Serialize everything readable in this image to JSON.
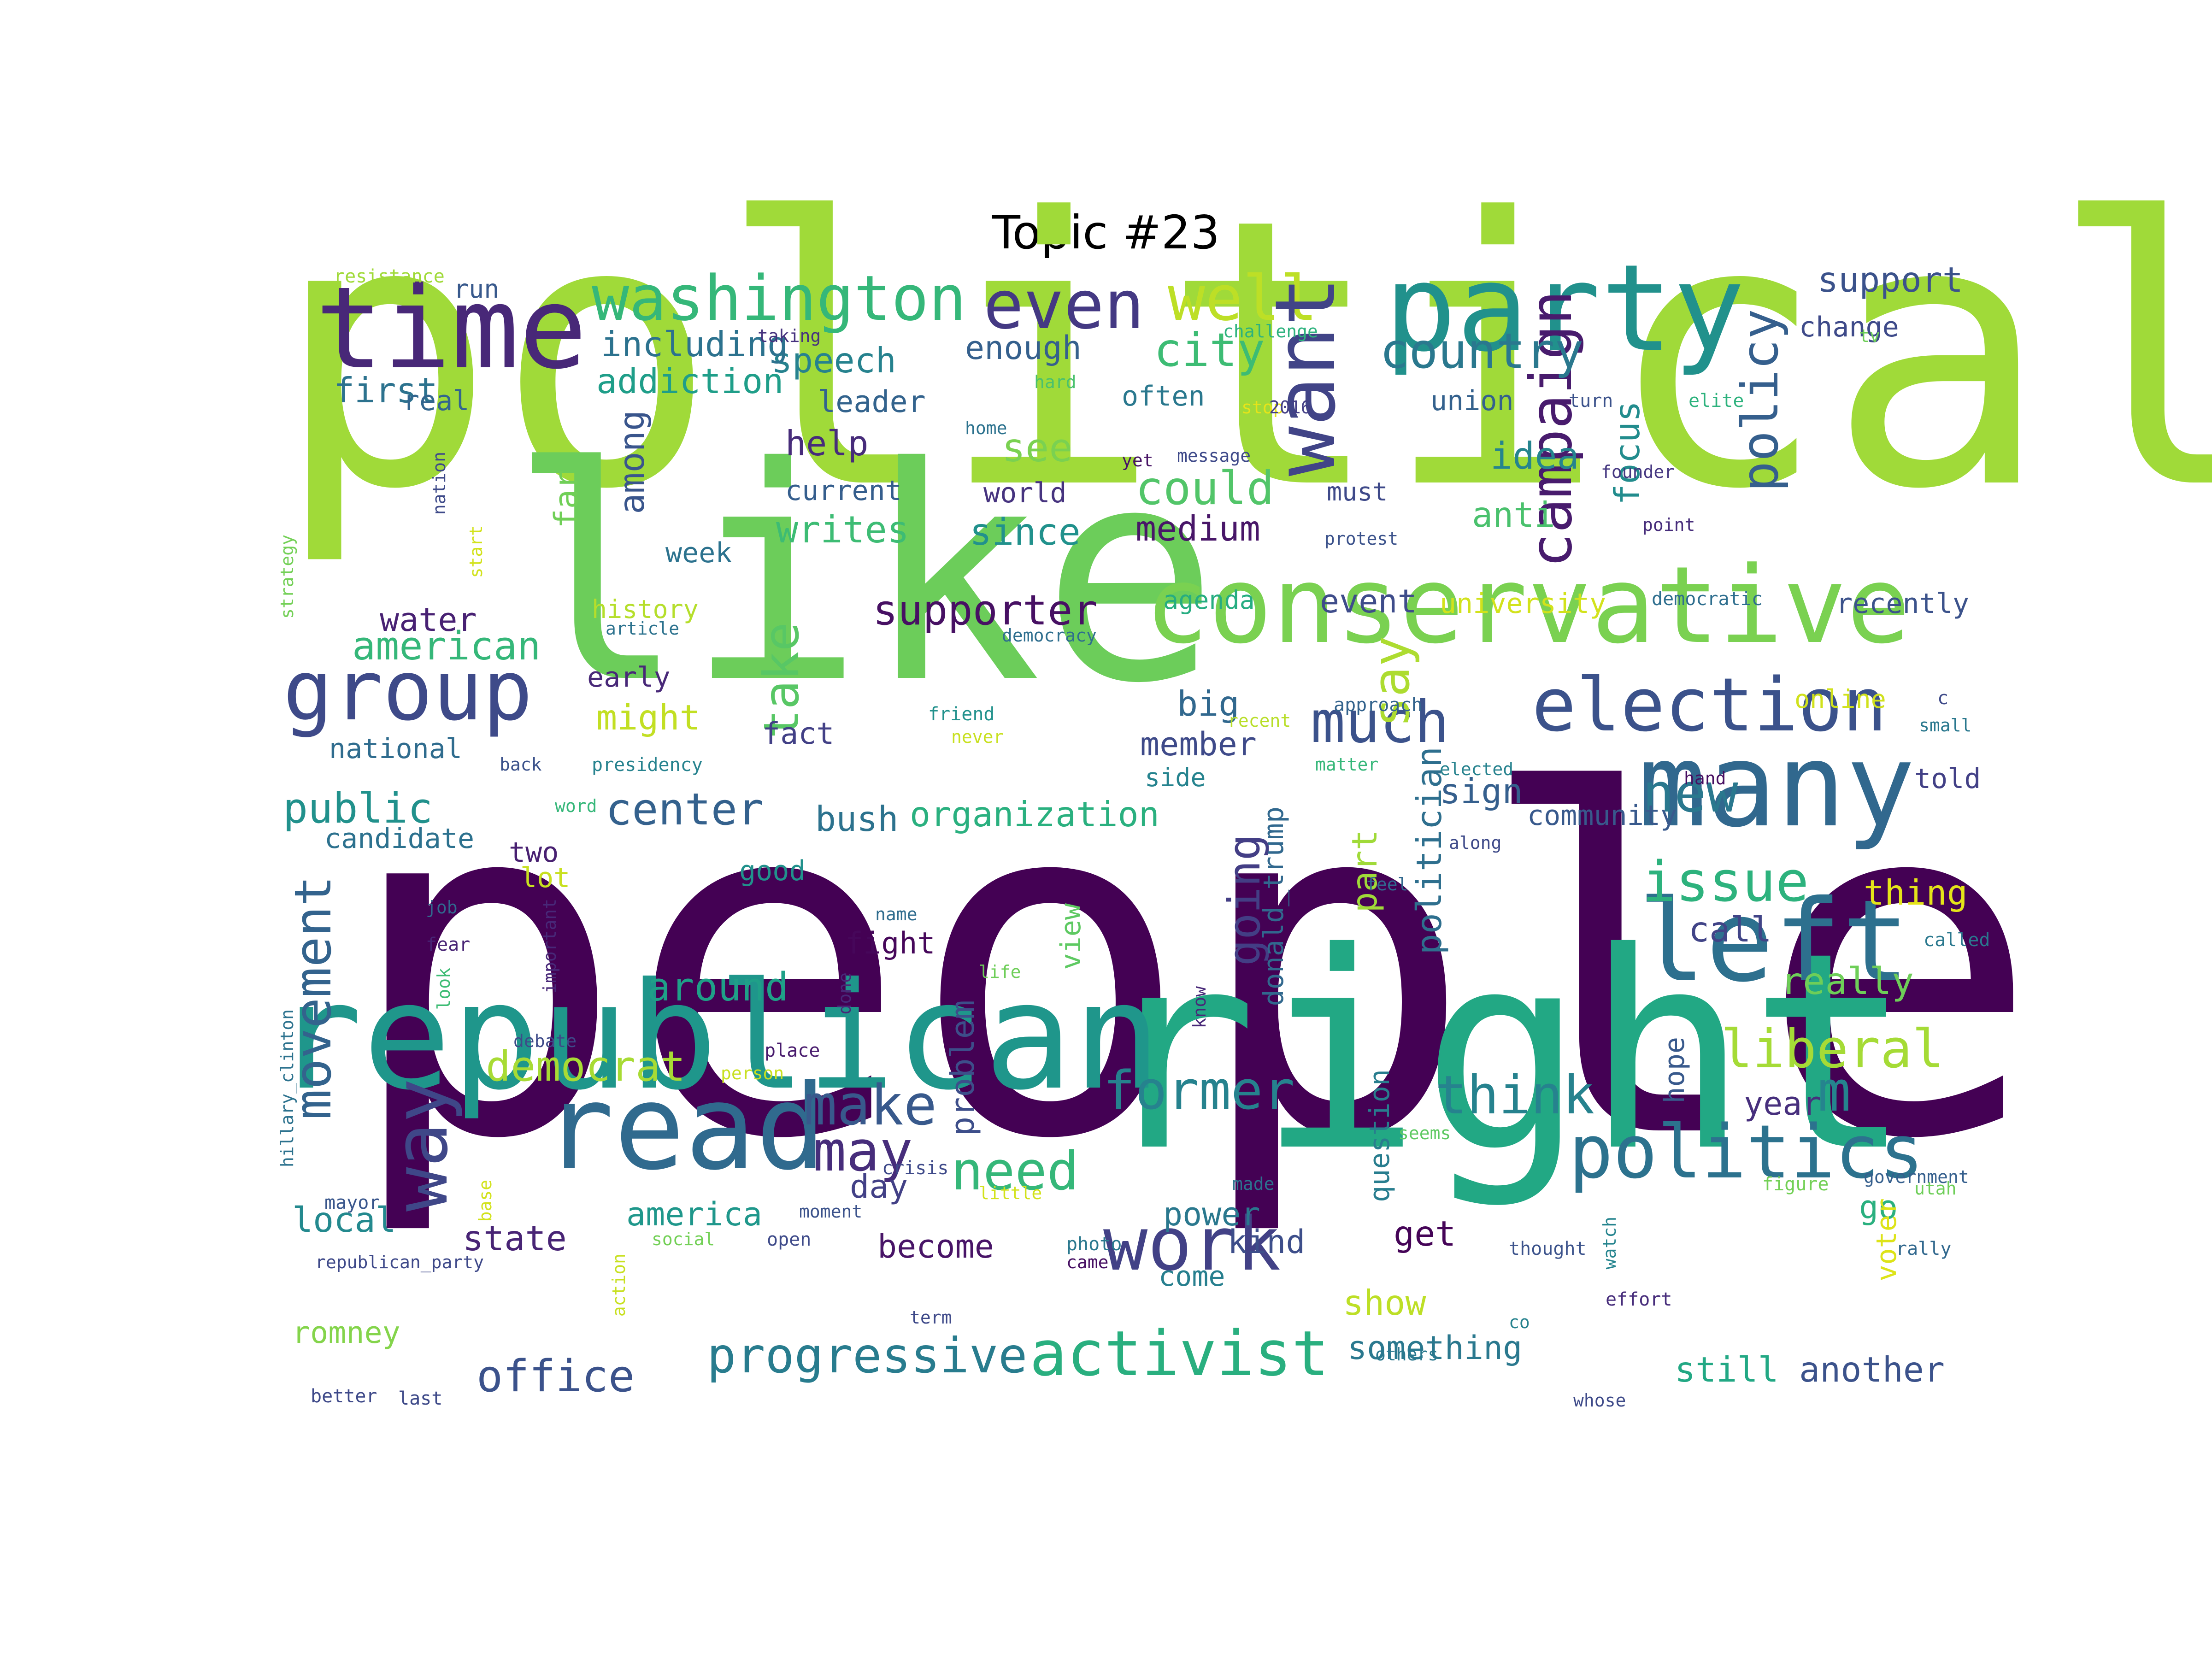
{
  "title": "Topic #23",
  "words": [
    {
      "text": "people",
      "color": "#440154"
    },
    {
      "text": "political",
      "color": "#a0da39"
    },
    {
      "text": "like",
      "color": "#6ccd5a"
    },
    {
      "text": "right",
      "color": "#22a884"
    },
    {
      "text": "republican",
      "color": "#1f968b"
    },
    {
      "text": "party",
      "color": "#21918c"
    },
    {
      "text": "time",
      "color": "#482878"
    },
    {
      "text": "conservative",
      "color": "#7ad151"
    },
    {
      "text": "many",
      "color": "#31688e"
    },
    {
      "text": "read",
      "color": "#306a8e"
    },
    {
      "text": "left",
      "color": "#2d708e"
    },
    {
      "text": "election",
      "color": "#3b528b"
    },
    {
      "text": "politics",
      "color": "#2c728e"
    },
    {
      "text": "group",
      "color": "#3e4a89"
    },
    {
      "text": "washington",
      "color": "#35b779"
    },
    {
      "text": "even",
      "color": "#443983"
    },
    {
      "text": "well",
      "color": "#bddf26"
    },
    {
      "text": "want",
      "color": "#414487"
    },
    {
      "text": "work",
      "color": "#424186"
    },
    {
      "text": "activist",
      "color": "#29af7f"
    },
    {
      "text": "progressive",
      "color": "#287c8e"
    },
    {
      "text": "make",
      "color": "#38598c"
    },
    {
      "text": "may",
      "color": "#472d7b"
    },
    {
      "text": "way",
      "color": "#3f4788"
    },
    {
      "text": "much",
      "color": "#3b528b"
    },
    {
      "text": "new",
      "color": "#2a788e"
    },
    {
      "text": "liberal",
      "color": "#a5db36"
    },
    {
      "text": "think",
      "color": "#26828e"
    },
    {
      "text": "former",
      "color": "#26828e"
    },
    {
      "text": "issue",
      "color": "#2db27d"
    },
    {
      "text": "need",
      "color": "#35b779"
    },
    {
      "text": "campaign",
      "color": "#481b6d"
    },
    {
      "text": "policy",
      "color": "#355f8d"
    },
    {
      "text": "country",
      "color": "#2a788e"
    },
    {
      "text": "city",
      "color": "#3dbc74"
    },
    {
      "text": "could",
      "color": "#52c569"
    },
    {
      "text": "supporter",
      "color": "#471063"
    },
    {
      "text": "office",
      "color": "#3b528b"
    },
    {
      "text": "democrat",
      "color": "#a8db34"
    },
    {
      "text": "movement",
      "color": "#33638d"
    },
    {
      "text": "public",
      "color": "#21918c"
    },
    {
      "text": "m",
      "color": "#25848e"
    },
    {
      "text": "american",
      "color": "#35b779"
    },
    {
      "text": "take",
      "color": "#58c765"
    },
    {
      "text": "organization",
      "color": "#2ab07f"
    },
    {
      "text": "center",
      "color": "#34618d"
    },
    {
      "text": "writes",
      "color": "#3dbc74"
    },
    {
      "text": "speech",
      "color": "#26828e"
    },
    {
      "text": "medium",
      "color": "#481668"
    },
    {
      "text": "since",
      "color": "#21918c"
    },
    {
      "text": "see",
      "color": "#7ad151"
    },
    {
      "text": "help",
      "color": "#472c7a"
    },
    {
      "text": "say",
      "color": "#addc30"
    },
    {
      "text": "going",
      "color": "#433e85"
    },
    {
      "text": "politician",
      "color": "#2e6f8e"
    },
    {
      "text": "focus",
      "color": "#228c8d"
    },
    {
      "text": "idea",
      "color": "#25848e"
    },
    {
      "text": "anti",
      "color": "#4ac16d"
    },
    {
      "text": "support",
      "color": "#3b528b"
    },
    {
      "text": "first",
      "color": "#2c728e"
    },
    {
      "text": "real",
      "color": "#32658e"
    },
    {
      "text": "run",
      "color": "#38598c"
    },
    {
      "text": "including",
      "color": "#2c728e"
    },
    {
      "text": "addiction",
      "color": "#1f9e89"
    },
    {
      "text": "enough",
      "color": "#35608d"
    },
    {
      "text": "leader",
      "color": "#33638d"
    },
    {
      "text": "often",
      "color": "#2a788e"
    },
    {
      "text": "union",
      "color": "#34618d"
    },
    {
      "text": "current",
      "color": "#355e8d"
    },
    {
      "text": "world",
      "color": "#46337f"
    },
    {
      "text": "must",
      "color": "#3e4989"
    },
    {
      "text": "among",
      "color": "#39558c"
    },
    {
      "text": "far",
      "color": "#70cf57"
    },
    {
      "text": "week",
      "color": "#2c728e"
    },
    {
      "text": "water",
      "color": "#482173"
    },
    {
      "text": "history",
      "color": "#b5de2b"
    },
    {
      "text": "university",
      "color": "#d2e21b"
    },
    {
      "text": "event",
      "color": "#3e4c8a"
    },
    {
      "text": "agenda",
      "color": "#26ad81"
    },
    {
      "text": "recently",
      "color": "#3b528b"
    },
    {
      "text": "early",
      "color": "#482878"
    },
    {
      "text": "might",
      "color": "#c2df23"
    },
    {
      "text": "fact",
      "color": "#424086"
    },
    {
      "text": "big",
      "color": "#31688e"
    },
    {
      "text": "member",
      "color": "#3e4a89"
    },
    {
      "text": "national",
      "color": "#2f6c8e"
    },
    {
      "text": "side",
      "color": "#25838e"
    },
    {
      "text": "online",
      "color": "#d0e11c"
    },
    {
      "text": "sign",
      "color": "#355f8d"
    },
    {
      "text": "community",
      "color": "#38598c"
    },
    {
      "text": "told",
      "color": "#424086"
    },
    {
      "text": "bush",
      "color": "#2c728e"
    },
    {
      "text": "candidate",
      "color": "#2c718e"
    },
    {
      "text": "two",
      "color": "#482071"
    },
    {
      "text": "lot",
      "color": "#c8e020"
    },
    {
      "text": "good",
      "color": "#21918c"
    },
    {
      "text": "thing",
      "color": "#e5e419"
    },
    {
      "text": "call",
      "color": "#414487"
    },
    {
      "text": "fight",
      "color": "#46075a"
    },
    {
      "text": "around",
      "color": "#1fa088"
    },
    {
      "text": "donald_trump",
      "color": "#31688e"
    },
    {
      "text": "part",
      "color": "#a0da39"
    },
    {
      "text": "really",
      "color": "#6ece58"
    },
    {
      "text": "year",
      "color": "#472f7d"
    },
    {
      "text": "problem",
      "color": "#3d4e8a"
    },
    {
      "text": "view",
      "color": "#5ec962"
    },
    {
      "text": "day",
      "color": "#424086"
    },
    {
      "text": "america",
      "color": "#1f978b"
    },
    {
      "text": "power",
      "color": "#2a788e"
    },
    {
      "text": "kind",
      "color": "#3d4e8a"
    },
    {
      "text": "local",
      "color": "#23898e"
    },
    {
      "text": "state",
      "color": "#482475"
    },
    {
      "text": "become",
      "color": "#481467"
    },
    {
      "text": "get",
      "color": "#450457"
    },
    {
      "text": "go",
      "color": "#2ab07f"
    },
    {
      "text": "hope",
      "color": "#38598c"
    },
    {
      "text": "question",
      "color": "#287d8e"
    },
    {
      "text": "voter",
      "color": "#dde318"
    },
    {
      "text": "come",
      "color": "#277f8e"
    },
    {
      "text": "show",
      "color": "#bddf26"
    },
    {
      "text": "something",
      "color": "#2a788e"
    },
    {
      "text": "romney",
      "color": "#84d44b"
    },
    {
      "text": "still",
      "color": "#22a884"
    },
    {
      "text": "another",
      "color": "#3b528b"
    },
    {
      "text": "resistance",
      "color": "#a0da39"
    },
    {
      "text": "taking",
      "color": "#46327e"
    },
    {
      "text": "challenge",
      "color": "#2db27d"
    },
    {
      "text": "change",
      "color": "#3e4a89"
    },
    {
      "text": "tv",
      "color": "#6ece58"
    },
    {
      "text": "hard",
      "color": "#4ac16d"
    },
    {
      "text": "home",
      "color": "#2c728e"
    },
    {
      "text": "stop",
      "color": "#e7e419"
    },
    {
      "text": "2016",
      "color": "#433e85"
    },
    {
      "text": "turn",
      "color": "#3b528b"
    },
    {
      "text": "elite",
      "color": "#2db27d"
    },
    {
      "text": "yet",
      "color": "#471365"
    },
    {
      "text": "message",
      "color": "#3e4989"
    },
    {
      "text": "founder",
      "color": "#453781"
    },
    {
      "text": "nation",
      "color": "#3e4a89"
    },
    {
      "text": "start",
      "color": "#d2e21b"
    },
    {
      "text": "protest",
      "color": "#3b528b"
    },
    {
      "text": "point",
      "color": "#472d7b"
    },
    {
      "text": "strategy",
      "color": "#73d056"
    },
    {
      "text": "article",
      "color": "#2c728e"
    },
    {
      "text": "democracy",
      "color": "#2e6e8e"
    },
    {
      "text": "democratic",
      "color": "#2e6e8e"
    },
    {
      "text": "approach",
      "color": "#33638d"
    },
    {
      "text": "friend",
      "color": "#21918c"
    },
    {
      "text": "recent",
      "color": "#b8de29"
    },
    {
      "text": "never",
      "color": "#c8e020"
    },
    {
      "text": "small",
      "color": "#2a788e"
    },
    {
      "text": "back",
      "color": "#3b528b"
    },
    {
      "text": "presidency",
      "color": "#26828e"
    },
    {
      "text": "matter",
      "color": "#35b779"
    },
    {
      "text": "elected",
      "color": "#26828e"
    },
    {
      "text": "hand",
      "color": "#470e61"
    },
    {
      "text": "word",
      "color": "#35b779"
    },
    {
      "text": "along",
      "color": "#3e4a89"
    },
    {
      "text": "feel",
      "color": "#31688e"
    },
    {
      "text": "job",
      "color": "#31688e"
    },
    {
      "text": "name",
      "color": "#2f6c8e"
    },
    {
      "text": "fear",
      "color": "#482475"
    },
    {
      "text": "important",
      "color": "#482878"
    },
    {
      "text": "done",
      "color": "#482878"
    },
    {
      "text": "life",
      "color": "#6ece58"
    },
    {
      "text": "look",
      "color": "#3dbc74"
    },
    {
      "text": "know",
      "color": "#482878"
    },
    {
      "text": "hillary_clinton",
      "color": "#2c728e"
    },
    {
      "text": "called",
      "color": "#2a788e"
    },
    {
      "text": "debate",
      "color": "#3e4a89"
    },
    {
      "text": "place",
      "color": "#481b6d"
    },
    {
      "text": "person",
      "color": "#c8e020"
    },
    {
      "text": "seems",
      "color": "#5ec962"
    },
    {
      "text": "crisis",
      "color": "#3e4989"
    },
    {
      "text": "mayor",
      "color": "#39568c"
    },
    {
      "text": "base",
      "color": "#d2e21b"
    },
    {
      "text": "made",
      "color": "#2c728e"
    },
    {
      "text": "figure",
      "color": "#73d056"
    },
    {
      "text": "government",
      "color": "#355f8d"
    },
    {
      "text": "utah",
      "color": "#6ece58"
    },
    {
      "text": "moment",
      "color": "#3b528b"
    },
    {
      "text": "little",
      "color": "#d2e21b"
    },
    {
      "text": "social",
      "color": "#73d056"
    },
    {
      "text": "open",
      "color": "#3e4a89"
    },
    {
      "text": "photo",
      "color": "#2a788e"
    },
    {
      "text": "came",
      "color": "#471063"
    },
    {
      "text": "thought",
      "color": "#3b528b"
    },
    {
      "text": "rally",
      "color": "#31688e"
    },
    {
      "text": "republican_party",
      "color": "#3e4989"
    },
    {
      "text": "action",
      "color": "#c8e020"
    },
    {
      "text": "watch",
      "color": "#25848e"
    },
    {
      "text": "effort",
      "color": "#472d7b"
    },
    {
      "text": "term",
      "color": "#3e4989"
    },
    {
      "text": "co",
      "color": "#26828e"
    },
    {
      "text": "others",
      "color": "#2a788e"
    },
    {
      "text": "better",
      "color": "#3e4989"
    },
    {
      "text": "last",
      "color": "#3e4a89"
    },
    {
      "text": "whose",
      "color": "#3e4a89"
    },
    {
      "text": "c",
      "color": "#3e4a89"
    }
  ]
}
